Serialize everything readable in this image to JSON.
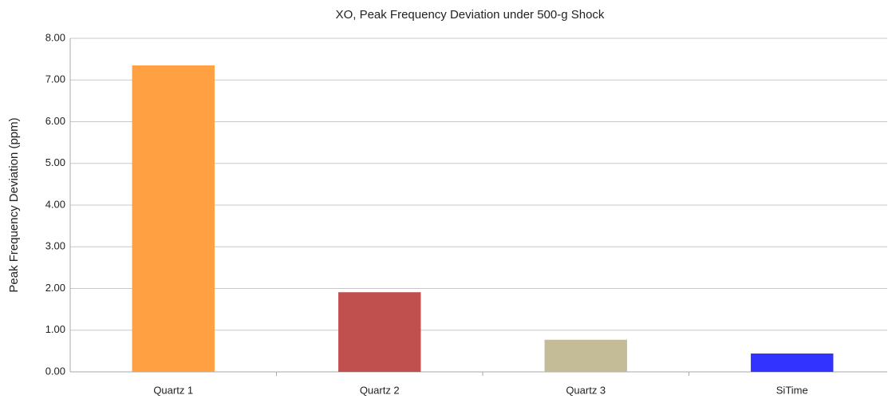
{
  "chart_data": {
    "type": "bar",
    "title": "XO, Peak Frequency Deviation under 500-g Shock",
    "y_label": "Peak Frequency Deviation (ppm)",
    "categories": [
      "Quartz 1",
      "Quartz 2",
      "Quartz 3",
      "SiTime"
    ],
    "values": [
      7.35,
      1.91,
      0.77,
      0.44
    ],
    "colors": [
      "#ffa042",
      "#c0504d",
      "#c4bc96",
      "#3333ff"
    ],
    "ylim": [
      0,
      8
    ],
    "yticks": [
      {
        "value": 0,
        "label": "0.00"
      },
      {
        "value": 1,
        "label": "1.00"
      },
      {
        "value": 2,
        "label": "2.00"
      },
      {
        "value": 3,
        "label": "3.00"
      },
      {
        "value": 4,
        "label": "4.00"
      },
      {
        "value": 5,
        "label": "5.00"
      },
      {
        "value": 6,
        "label": "6.00"
      },
      {
        "value": 7,
        "label": "7.00"
      },
      {
        "value": 8,
        "label": "8.00"
      }
    ],
    "grid": true
  }
}
